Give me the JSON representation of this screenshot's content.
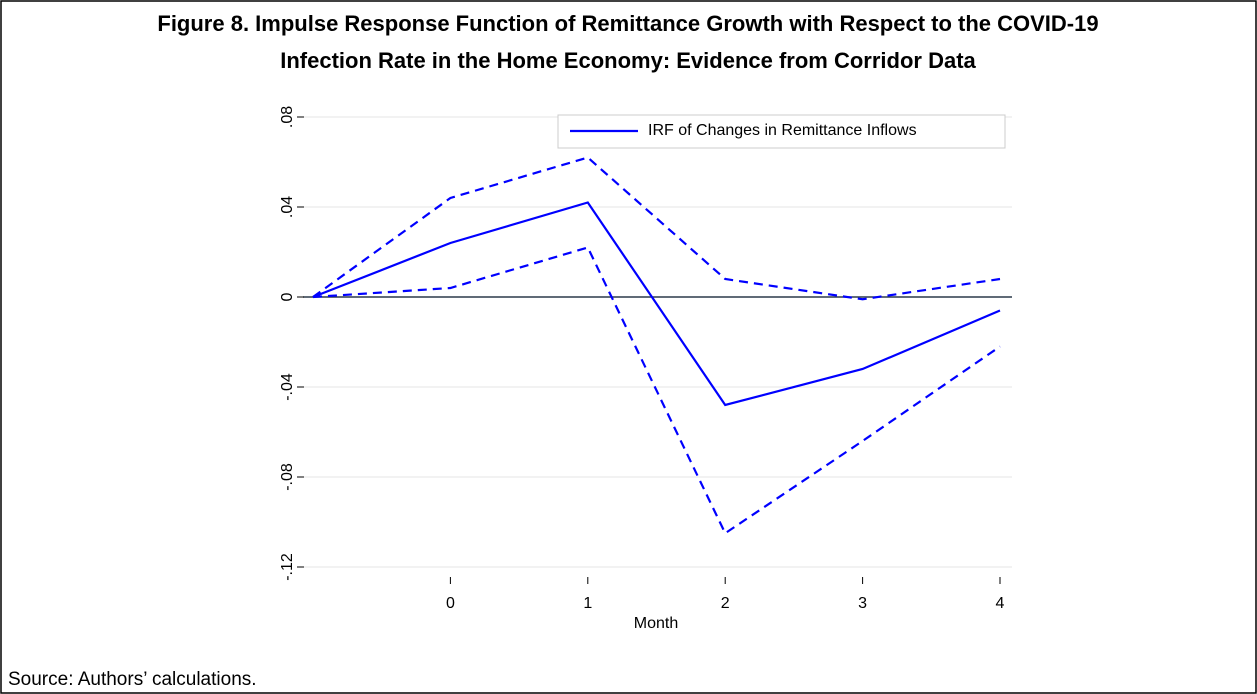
{
  "chart_data": {
    "type": "line",
    "title": [
      "Figure 8. Impulse Response Function of Remittance Growth with Respect to the COVID-19",
      "Infection Rate in the Home Economy: Evidence from Corridor Data"
    ],
    "x_label": "Month",
    "source": "Source: Authors’ calculations.",
    "x": [
      -1,
      0,
      1,
      2,
      3,
      4
    ],
    "series": [
      {
        "name": "IRF of Changes in Remittance Inflows",
        "color": "#0000ff",
        "values": [
          0,
          0.024,
          0.042,
          -0.048,
          -0.032,
          -0.006
        ]
      }
    ],
    "upper": [
      0,
      0.044,
      0.062,
      0.008,
      -0.001,
      0.008
    ],
    "lower": [
      0,
      0.004,
      0.022,
      -0.105,
      -0.064,
      -0.022
    ],
    "band_color": "#0000ff",
    "xlim": [
      -1,
      4
    ],
    "xticks": [
      0,
      1,
      2,
      3,
      4
    ],
    "ylim": [
      -0.12,
      0.08
    ],
    "yticks": [
      {
        "value": -0.12,
        "label": "-.12"
      },
      {
        "value": -0.08,
        "label": "-.08"
      },
      {
        "value": -0.04,
        "label": "-.04"
      },
      0,
      {
        "value": 0.04,
        "label": ".04"
      },
      {
        "value": 0.08,
        "label": ".08"
      }
    ],
    "grid": true,
    "legend": "top-right"
  }
}
